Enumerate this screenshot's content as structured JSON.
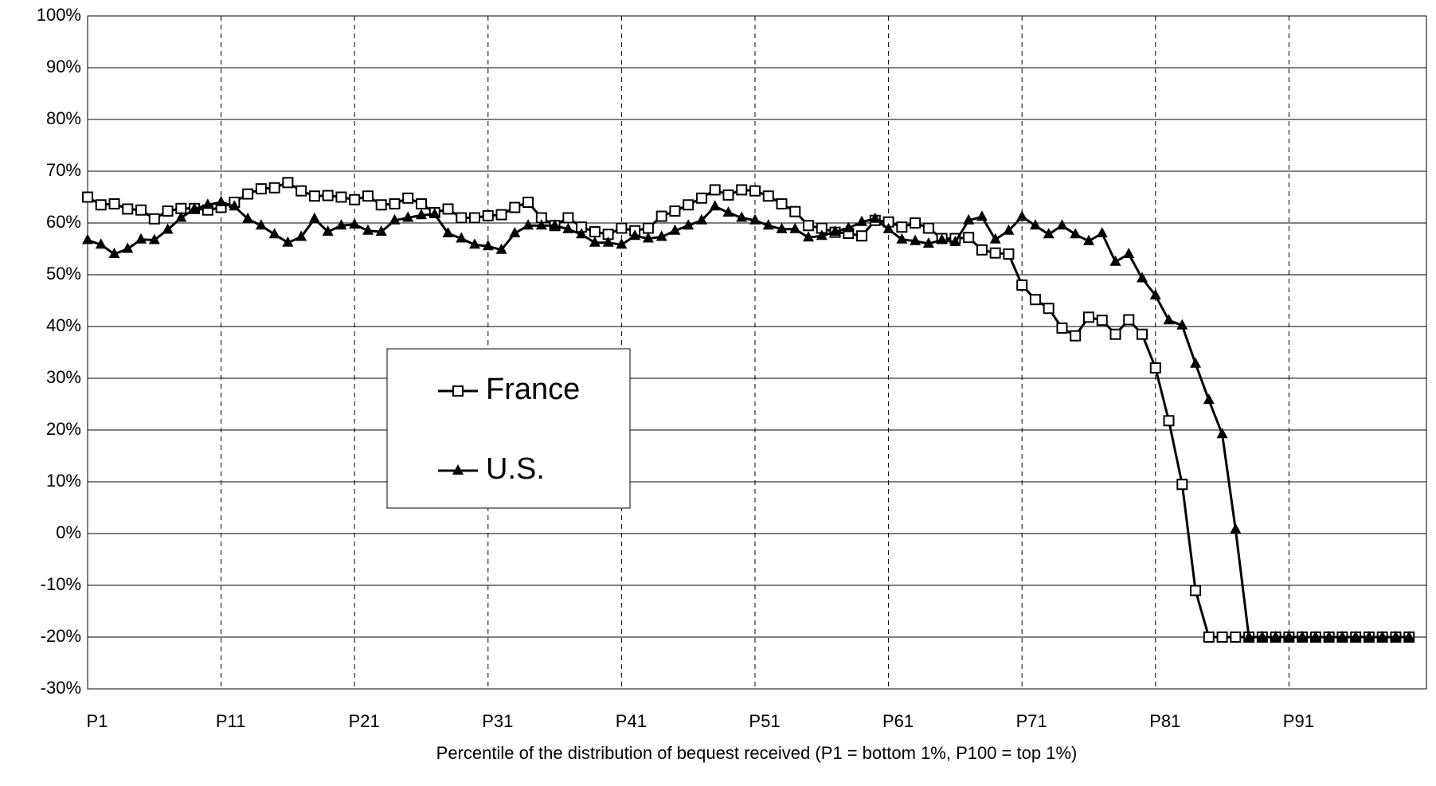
{
  "chart_data": {
    "type": "line",
    "x_label": "Percentile of the distribution of bequest received (P1 = bottom 1%, P100 = top 1%)",
    "categories": [
      "P1",
      null,
      null,
      null,
      null,
      null,
      null,
      null,
      null,
      null,
      "P11",
      null,
      null,
      null,
      null,
      null,
      null,
      null,
      null,
      null,
      "P21",
      null,
      null,
      null,
      null,
      null,
      null,
      null,
      null,
      null,
      "P31",
      null,
      null,
      null,
      null,
      null,
      null,
      null,
      null,
      null,
      "P41",
      null,
      null,
      null,
      null,
      null,
      null,
      null,
      null,
      null,
      "P51",
      null,
      null,
      null,
      null,
      null,
      null,
      null,
      null,
      null,
      "P61",
      null,
      null,
      null,
      null,
      null,
      null,
      null,
      null,
      null,
      "P71",
      null,
      null,
      null,
      null,
      null,
      null,
      null,
      null,
      null,
      "P81",
      null,
      null,
      null,
      null,
      null,
      null,
      null,
      null,
      null,
      "P91",
      null,
      null,
      null,
      null,
      null,
      null,
      null,
      null,
      null
    ],
    "series": [
      {
        "name": "France",
        "color": "#000000",
        "marker": "square",
        "values": [
          65,
          63.5,
          63.7,
          62.7,
          62.5,
          60.8,
          62.3,
          62.8,
          62.8,
          62.5,
          63,
          64,
          65.6,
          66.6,
          66.8,
          67.8,
          66.2,
          65.2,
          65.3,
          65,
          64.5,
          65.2,
          63.5,
          63.7,
          64.8,
          63.7,
          62,
          62.7,
          61,
          61,
          61.4,
          61.6,
          63,
          64,
          61,
          59.5,
          61,
          59.2,
          58.3,
          57.8,
          59,
          58.5,
          59,
          61.3,
          62.3,
          63.5,
          64.8,
          66.4,
          65.4,
          66.4,
          66.2,
          65.2,
          63.7,
          62.2,
          59.5,
          59,
          58.2,
          58,
          57.5,
          60.5,
          60.2,
          59.2,
          60,
          59,
          57,
          57,
          57.2,
          54.8,
          54.2,
          54,
          48,
          45.2,
          43.5,
          39.7,
          38.2,
          41.8,
          41.2,
          38.5,
          41.3,
          38.5,
          32,
          21.8,
          9.5,
          -11,
          -20,
          -20,
          -20,
          -20,
          -20,
          -20,
          -20,
          -20,
          -20,
          -20,
          -20,
          -20,
          -20,
          -20,
          -20,
          -20
        ]
      },
      {
        "name": "U.S.",
        "color": "#000000",
        "marker": "triangle",
        "values": [
          56.7,
          55.8,
          54,
          55,
          56.8,
          56.7,
          58.7,
          61,
          62.7,
          63.5,
          64,
          63.2,
          60.8,
          59.5,
          57.8,
          56.2,
          57.3,
          60.8,
          58.3,
          59.5,
          59.7,
          58.5,
          58.3,
          60.5,
          61,
          61.5,
          61.7,
          58,
          57,
          55.8,
          55.5,
          54.8,
          58,
          59.5,
          59.5,
          59.5,
          58.8,
          57.8,
          56.2,
          56.2,
          55.8,
          57.5,
          57,
          57.3,
          58.5,
          59.5,
          60.5,
          63.2,
          62,
          61,
          60.5,
          59.5,
          58.8,
          58.8,
          57.2,
          57.5,
          58.3,
          59,
          60.2,
          60.8,
          58.8,
          56.8,
          56.5,
          56,
          56.7,
          56.3,
          60.5,
          61.2,
          56.8,
          58.5,
          61.2,
          59.5,
          57.8,
          59.5,
          57.8,
          56.5,
          58,
          52.5,
          54,
          49.3,
          46,
          41.2,
          40.2,
          32.8,
          25.8,
          19.2,
          0.8,
          -20,
          -20,
          -20,
          -20,
          -20,
          -20,
          -20,
          -20,
          -20,
          -20,
          -20,
          -20,
          -20
        ]
      }
    ],
    "ylim": [
      -30,
      100
    ],
    "yticks": [
      {
        "value": -30,
        "label": "-30%"
      },
      {
        "value": -20,
        "label": "-20%"
      },
      {
        "value": -10,
        "label": "-10%"
      },
      {
        "value": 0,
        "label": "0%"
      },
      {
        "value": 10,
        "label": "10%"
      },
      {
        "value": 20,
        "label": "20%"
      },
      {
        "value": 30,
        "label": "30%"
      },
      {
        "value": 40,
        "label": "40%"
      },
      {
        "value": 50,
        "label": "50%"
      },
      {
        "value": 60,
        "label": "60%"
      },
      {
        "value": 70,
        "label": "70%"
      },
      {
        "value": 80,
        "label": "80%"
      },
      {
        "value": 90,
        "label": "90%"
      },
      {
        "value": 100,
        "label": "100%"
      }
    ],
    "grid": true
  }
}
